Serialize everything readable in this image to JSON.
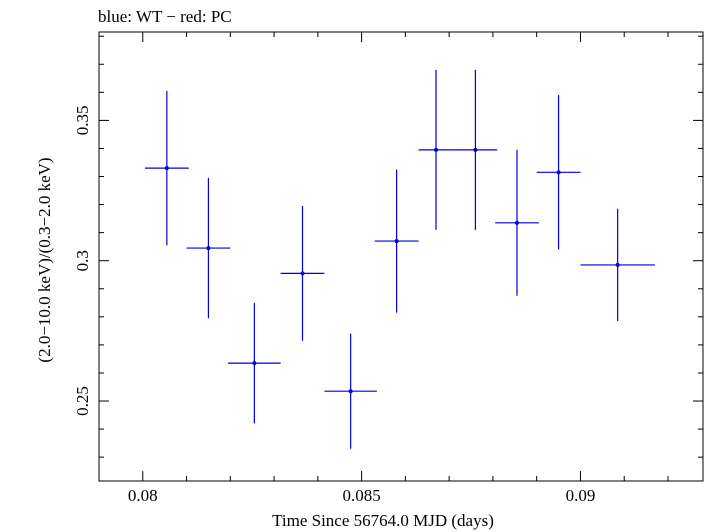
{
  "chart_data": {
    "type": "scatter",
    "title": "blue: WT − red: PC",
    "xlabel": "Time Since 56764.0 MJD (days)",
    "ylabel": "(2.0−10.0 keV)/(0.3−2.0 keV)",
    "xlim": [
      0.079,
      0.0928
    ],
    "ylim": [
      0.2215,
      0.3815
    ],
    "x_ticks": [
      {
        "value": 0.08,
        "label": "0.08"
      },
      {
        "value": 0.085,
        "label": "0.085"
      },
      {
        "value": 0.09,
        "label": "0.09"
      }
    ],
    "y_ticks": [
      {
        "value": 0.25,
        "label": "0.25"
      },
      {
        "value": 0.3,
        "label": "0.3"
      },
      {
        "value": 0.35,
        "label": "0.35"
      }
    ],
    "grid": false,
    "legend": "none",
    "series": [
      {
        "color": "#0000dd",
        "points": [
          {
            "x": 0.08055,
            "xerr": 0.0005,
            "y": 0.333,
            "yerr": 0.0275
          },
          {
            "x": 0.0815,
            "xerr": 0.0005,
            "y": 0.3045,
            "yerr": 0.025
          },
          {
            "x": 0.08255,
            "xerr": 0.0006,
            "y": 0.2635,
            "yerr": 0.0215
          },
          {
            "x": 0.08365,
            "xerr": 0.0005,
            "y": 0.2955,
            "yerr": 0.024
          },
          {
            "x": 0.08475,
            "xerr": 0.0006,
            "y": 0.2535,
            "yerr": 0.0205
          },
          {
            "x": 0.0858,
            "xerr": 0.0005,
            "y": 0.307,
            "yerr": 0.0255
          },
          {
            "x": 0.0867,
            "xerr": 0.0004,
            "y": 0.3395,
            "yerr": 0.0285
          },
          {
            "x": 0.0876,
            "xerr": 0.0005,
            "y": 0.3395,
            "yerr": 0.0285
          },
          {
            "x": 0.08855,
            "xerr": 0.0005,
            "y": 0.3135,
            "yerr": 0.026
          },
          {
            "x": 0.0895,
            "xerr": 0.0005,
            "y": 0.3315,
            "yerr": 0.0275
          },
          {
            "x": 0.09085,
            "xerr": 0.00085,
            "y": 0.2985,
            "yerr": 0.02
          }
        ]
      }
    ]
  }
}
